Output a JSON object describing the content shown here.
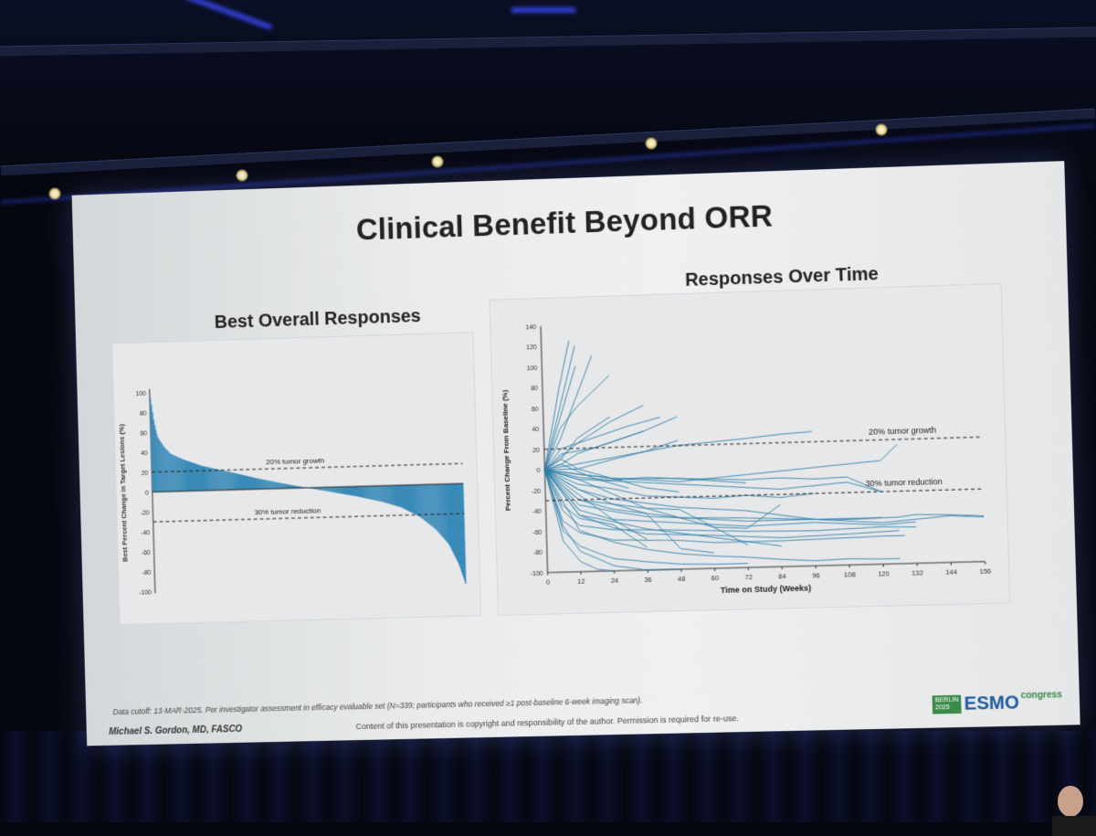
{
  "slide": {
    "title": "Clinical Benefit Beyond ORR",
    "footnote": "Data cutoff: 13-MAR-2025. Per investigator assessment in efficacy evaluable set (N=339; participants who received ≥1 post-baseline 6-week imaging scan).",
    "author": "Michael S. Gordon, MD, FASCO",
    "copyright": "Content of this presentation is copyright and responsibility of the author. Permission is required for re-use.",
    "logo": {
      "city": "BERLIN",
      "year": "2025",
      "brand": "ESMO",
      "suffix": "congress"
    }
  },
  "colors": {
    "bar": "#3b8bb8",
    "line": "#2c7ea6",
    "reference": "#222222"
  },
  "chart_data": [
    {
      "type": "bar",
      "title": "Best Overall Responses",
      "xlabel": "",
      "ylabel": "Best Percent Change in Target Lesions (%)",
      "ylim": [
        -100,
        100
      ],
      "yticks": [
        100,
        80,
        60,
        40,
        20,
        0,
        -20,
        -40,
        -60,
        -80,
        -100
      ],
      "n_patients": 339,
      "waterfall_profile": [
        {
          "rank": 0.0,
          "value": 95
        },
        {
          "rank": 0.01,
          "value": 70
        },
        {
          "rank": 0.02,
          "value": 55
        },
        {
          "rank": 0.04,
          "value": 45
        },
        {
          "rank": 0.06,
          "value": 38
        },
        {
          "rank": 0.1,
          "value": 32
        },
        {
          "rank": 0.16,
          "value": 25
        },
        {
          "rank": 0.25,
          "value": 18
        },
        {
          "rank": 0.35,
          "value": 10
        },
        {
          "rank": 0.45,
          "value": 3
        },
        {
          "rank": 0.5,
          "value": 0
        },
        {
          "rank": 0.58,
          "value": -5
        },
        {
          "rank": 0.66,
          "value": -10
        },
        {
          "rank": 0.74,
          "value": -16
        },
        {
          "rank": 0.8,
          "value": -22
        },
        {
          "rank": 0.86,
          "value": -32
        },
        {
          "rank": 0.91,
          "value": -45
        },
        {
          "rank": 0.95,
          "value": -60
        },
        {
          "rank": 0.98,
          "value": -80
        },
        {
          "rank": 1.0,
          "value": -100
        }
      ],
      "reference_lines": [
        {
          "label": "20% tumor growth",
          "y": 20
        },
        {
          "label": "30% tumor reduction",
          "y": -30
        }
      ]
    },
    {
      "type": "line",
      "title": "Responses Over Time",
      "xlabel": "Time on Study (Weeks)",
      "ylabel": "Percent Change From Baseline (%)",
      "xlim": [
        0,
        156
      ],
      "ylim": [
        -100,
        140
      ],
      "xticks": [
        0,
        12,
        24,
        36,
        48,
        60,
        72,
        84,
        96,
        108,
        120,
        132,
        144,
        156
      ],
      "yticks": [
        140,
        120,
        100,
        80,
        60,
        40,
        20,
        0,
        -20,
        -40,
        -60,
        -80,
        -100
      ],
      "reference_lines": [
        {
          "label": "20% tumor growth",
          "y": 20
        },
        {
          "label": "30% tumor reduction",
          "y": -30
        }
      ],
      "series": [
        {
          "x": [
            0,
            6,
            12
          ],
          "y": [
            0,
            60,
            120
          ]
        },
        {
          "x": [
            0,
            6,
            10
          ],
          "y": [
            0,
            80,
            125
          ]
        },
        {
          "x": [
            0,
            6,
            12,
            18
          ],
          "y": [
            0,
            30,
            70,
            110
          ]
        },
        {
          "x": [
            0,
            6,
            12,
            24
          ],
          "y": [
            0,
            40,
            60,
            90
          ]
        },
        {
          "x": [
            0,
            6,
            12
          ],
          "y": [
            0,
            50,
            100
          ]
        },
        {
          "x": [
            0,
            6,
            18,
            30,
            42
          ],
          "y": [
            0,
            20,
            30,
            40,
            48
          ]
        },
        {
          "x": [
            0,
            6,
            18,
            36,
            48
          ],
          "y": [
            0,
            15,
            20,
            35,
            48
          ]
        },
        {
          "x": [
            0,
            12,
            24,
            36
          ],
          "y": [
            0,
            25,
            45,
            60
          ]
        },
        {
          "x": [
            0,
            6,
            12,
            24
          ],
          "y": [
            0,
            10,
            30,
            50
          ]
        },
        {
          "x": [
            0,
            12,
            24,
            48,
            72,
            84,
            96
          ],
          "y": [
            0,
            5,
            10,
            20,
            25,
            28,
            30
          ]
        },
        {
          "x": [
            0,
            12,
            24,
            48,
            72,
            96,
            120,
            126
          ],
          "y": [
            0,
            -5,
            -10,
            -15,
            -10,
            -5,
            0,
            15
          ]
        },
        {
          "x": [
            0,
            12,
            36,
            60,
            84,
            108,
            120
          ],
          "y": [
            0,
            -10,
            -15,
            -20,
            -25,
            -20,
            -30
          ]
        },
        {
          "x": [
            0,
            12,
            24,
            48,
            72,
            84,
            96,
            120
          ],
          "y": [
            0,
            -20,
            -30,
            -40,
            -45,
            -50,
            -55,
            -55
          ]
        },
        {
          "x": [
            0,
            12,
            24,
            48,
            72,
            96,
            120,
            144,
            156
          ],
          "y": [
            0,
            -30,
            -40,
            -50,
            -55,
            -55,
            -60,
            -55,
            -57
          ]
        },
        {
          "x": [
            0,
            12,
            24,
            48,
            72,
            96,
            120,
            132
          ],
          "y": [
            0,
            -40,
            -50,
            -55,
            -60,
            -58,
            -62,
            -60
          ]
        },
        {
          "x": [
            0,
            6,
            12,
            24,
            48,
            72,
            96,
            120,
            132
          ],
          "y": [
            0,
            -40,
            -55,
            -60,
            -62,
            -65,
            -66,
            -64,
            -65
          ]
        },
        {
          "x": [
            0,
            12,
            24,
            36,
            60,
            84,
            108,
            126
          ],
          "y": [
            0,
            -45,
            -58,
            -65,
            -68,
            -72,
            -70,
            -68
          ]
        },
        {
          "x": [
            0,
            6,
            12,
            24,
            48,
            60,
            84,
            120,
            128
          ],
          "y": [
            0,
            -50,
            -62,
            -70,
            -72,
            -75,
            -75,
            -73,
            -73
          ]
        },
        {
          "x": [
            0,
            6,
            12,
            18,
            24,
            36,
            48,
            60,
            72
          ],
          "y": [
            0,
            -60,
            -75,
            -82,
            -88,
            -92,
            -95,
            -96,
            -96
          ]
        },
        {
          "x": [
            0,
            6,
            12,
            18,
            24
          ],
          "y": [
            0,
            -70,
            -90,
            -98,
            -100
          ]
        },
        {
          "x": [
            0,
            6,
            12,
            24,
            36,
            48
          ],
          "y": [
            0,
            -55,
            -80,
            -95,
            -100,
            -100
          ]
        },
        {
          "x": [
            0,
            12,
            24,
            36,
            48,
            60,
            72,
            84,
            96,
            108,
            120,
            126
          ],
          "y": [
            0,
            -60,
            -72,
            -80,
            -85,
            -88,
            -90,
            -93,
            -95,
            -94,
            -95,
            -95
          ]
        },
        {
          "x": [
            0,
            12,
            24,
            36,
            48,
            60
          ],
          "y": [
            0,
            -20,
            -35,
            -45,
            -80,
            -85
          ]
        },
        {
          "x": [
            0,
            12,
            24,
            36,
            48,
            60,
            72
          ],
          "y": [
            0,
            -10,
            -25,
            -40,
            -50,
            -60,
            -78
          ]
        },
        {
          "x": [
            0,
            12,
            24,
            36,
            48,
            60,
            72,
            84,
            96
          ],
          "y": [
            0,
            -15,
            -20,
            -28,
            -30,
            -32,
            -30,
            -33,
            -30
          ]
        },
        {
          "x": [
            0,
            12,
            24,
            48,
            72,
            84,
            96,
            108,
            120
          ],
          "y": [
            0,
            -5,
            -10,
            -12,
            -15,
            -14,
            -16,
            -15,
            -30
          ]
        },
        {
          "x": [
            0,
            12,
            24,
            36,
            48,
            60,
            72,
            84
          ],
          "y": [
            0,
            -30,
            -35,
            -40,
            -42,
            -60,
            -62,
            -40
          ]
        },
        {
          "x": [
            0,
            12,
            24,
            36
          ],
          "y": [
            0,
            -25,
            -50,
            -70
          ]
        },
        {
          "x": [
            0,
            6,
            12,
            24,
            36
          ],
          "y": [
            0,
            -35,
            -48,
            -55,
            -78
          ]
        },
        {
          "x": [
            0,
            6,
            12
          ],
          "y": [
            0,
            -20,
            -40
          ]
        },
        {
          "x": [
            0,
            6,
            18,
            30
          ],
          "y": [
            0,
            5,
            -10,
            -20
          ]
        },
        {
          "x": [
            0,
            6,
            12,
            24,
            36,
            48
          ],
          "y": [
            0,
            10,
            0,
            -10,
            -20,
            -25
          ]
        },
        {
          "x": [
            0,
            12,
            24,
            36,
            48,
            72,
            96,
            108,
            126,
            132,
            144,
            156
          ],
          "y": [
            0,
            -35,
            -42,
            -48,
            -50,
            -52,
            -55,
            -56,
            -55,
            -53,
            -54,
            -56
          ]
        },
        {
          "x": [
            0,
            12,
            24,
            36,
            60,
            84
          ],
          "y": [
            0,
            -45,
            -52,
            -60,
            -70,
            -80
          ]
        },
        {
          "x": [
            0,
            12,
            24,
            36,
            48
          ],
          "y": [
            0,
            0,
            8,
            15,
            25
          ]
        },
        {
          "x": [
            0,
            6,
            12,
            24,
            36
          ],
          "y": [
            0,
            5,
            15,
            25,
            35
          ]
        },
        {
          "x": [
            0,
            12,
            24,
            36,
            48,
            60,
            72
          ],
          "y": [
            0,
            -8,
            -12,
            -10,
            -12,
            -15,
            -18
          ]
        }
      ]
    }
  ]
}
